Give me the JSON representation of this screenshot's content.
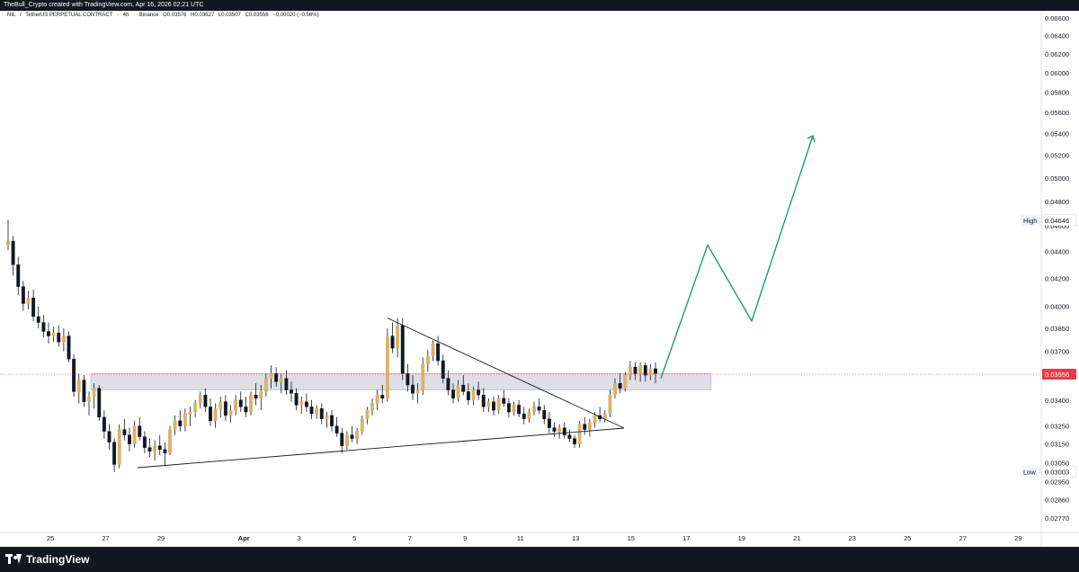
{
  "header": {
    "attribution": "TheBull_Crypto created with TradingView.com, Apr 16, 2026 02:21 UTC"
  },
  "symbol_bar": {
    "symbol": "NIL",
    "separator": "/",
    "pair": "TetherUS PERPETUAL CONTRACT",
    "interval": "4h",
    "exchange": "Binance",
    "open": "O0.03576",
    "high": "H0.03627",
    "low": "L0.03507",
    "close": "C0.03556",
    "change": "−0.00020 (−0.56%)"
  },
  "footer": {
    "brand": "TradingView"
  },
  "colors": {
    "candle_up": "#d7b46a",
    "candle_down": "#131722",
    "projection": "#1e9c74",
    "zone": "#d1d4dc",
    "price_tag": "#f23645",
    "trendline": "#131722"
  },
  "chart_data": {
    "type": "candlestick",
    "title": "NIL / TetherUS PERPETUAL CONTRACT · 4h · Binance",
    "price_axis": {
      "labels": [
        "0.06600",
        "0.06400",
        "0.06200",
        "0.06000",
        "0.05800",
        "0.05600",
        "0.05400",
        "0.05200",
        "0.05000",
        "0.04800",
        "0.04600",
        "0.04400",
        "0.04200",
        "0.04000",
        "0.03850",
        "0.03700",
        "0.03550",
        "0.03400",
        "0.03250",
        "0.03150",
        "0.03050",
        "0.02950",
        "0.02860",
        "0.02770"
      ],
      "scale": "log",
      "range": [
        0.0272,
        0.0662
      ]
    },
    "time_axis": {
      "labels": [
        "25",
        "27",
        "29",
        "Apr",
        "3",
        "5",
        "7",
        "9",
        "11",
        "13",
        "15",
        "17",
        "19",
        "21",
        "23",
        "25",
        "27",
        "29"
      ]
    },
    "markers": {
      "high_label": "High",
      "high_value": "0.04646",
      "low_label": "Low",
      "low_value": "0.03003",
      "last_value": "0.03556"
    },
    "candles": [
      {
        "date": "Mar 24",
        "o": 0.0445,
        "h": 0.0465,
        "l": 0.0441,
        "c": 0.0448
      },
      {
        "date": "Mar 24",
        "o": 0.0448,
        "h": 0.0452,
        "l": 0.0422,
        "c": 0.043
      },
      {
        "date": "Mar 24",
        "o": 0.043,
        "h": 0.0436,
        "l": 0.0408,
        "c": 0.0414
      },
      {
        "date": "Mar 25",
        "o": 0.0414,
        "h": 0.0418,
        "l": 0.0397,
        "c": 0.0402
      },
      {
        "date": "Mar 25",
        "o": 0.0402,
        "h": 0.0411,
        "l": 0.0398,
        "c": 0.0406
      },
      {
        "date": "Mar 25",
        "o": 0.0406,
        "h": 0.0412,
        "l": 0.039,
        "c": 0.0393
      },
      {
        "date": "Mar 25",
        "o": 0.0393,
        "h": 0.04,
        "l": 0.0385,
        "c": 0.0389
      },
      {
        "date": "Mar 25",
        "o": 0.0389,
        "h": 0.0394,
        "l": 0.0379,
        "c": 0.0383
      },
      {
        "date": "Mar 25",
        "o": 0.0383,
        "h": 0.0389,
        "l": 0.0375,
        "c": 0.038
      },
      {
        "date": "Mar 26",
        "o": 0.038,
        "h": 0.0386,
        "l": 0.0376,
        "c": 0.0382
      },
      {
        "date": "Mar 26",
        "o": 0.0382,
        "h": 0.0387,
        "l": 0.0373,
        "c": 0.0376
      },
      {
        "date": "Mar 26",
        "o": 0.0376,
        "h": 0.0385,
        "l": 0.037,
        "c": 0.038
      },
      {
        "date": "Mar 26",
        "o": 0.038,
        "h": 0.0383,
        "l": 0.0363,
        "c": 0.0365
      },
      {
        "date": "Mar 26",
        "o": 0.0365,
        "h": 0.0368,
        "l": 0.0342,
        "c": 0.0345
      },
      {
        "date": "Mar 26",
        "o": 0.0345,
        "h": 0.0356,
        "l": 0.0338,
        "c": 0.0352
      },
      {
        "date": "Mar 27",
        "o": 0.0352,
        "h": 0.0355,
        "l": 0.0336,
        "c": 0.0339
      },
      {
        "date": "Mar 27",
        "o": 0.0339,
        "h": 0.0345,
        "l": 0.0331,
        "c": 0.0342
      },
      {
        "date": "Mar 27",
        "o": 0.0342,
        "h": 0.035,
        "l": 0.0335,
        "c": 0.0347
      },
      {
        "date": "Mar 27",
        "o": 0.0347,
        "h": 0.0349,
        "l": 0.0328,
        "c": 0.033
      },
      {
        "date": "Mar 27",
        "o": 0.033,
        "h": 0.0334,
        "l": 0.0318,
        "c": 0.0322
      },
      {
        "date": "Mar 27",
        "o": 0.0322,
        "h": 0.0326,
        "l": 0.0312,
        "c": 0.0316
      },
      {
        "date": "Mar 28",
        "o": 0.0316,
        "h": 0.0318,
        "l": 0.03,
        "c": 0.0304
      },
      {
        "date": "Mar 28",
        "o": 0.0304,
        "h": 0.0326,
        "l": 0.0302,
        "c": 0.0323
      },
      {
        "date": "Mar 28",
        "o": 0.0323,
        "h": 0.0329,
        "l": 0.0317,
        "c": 0.032
      },
      {
        "date": "Mar 28",
        "o": 0.032,
        "h": 0.0324,
        "l": 0.0311,
        "c": 0.0315
      },
      {
        "date": "Mar 28",
        "o": 0.0315,
        "h": 0.0328,
        "l": 0.0313,
        "c": 0.0325
      },
      {
        "date": "Mar 28",
        "o": 0.0325,
        "h": 0.033,
        "l": 0.0317,
        "c": 0.0319
      },
      {
        "date": "Mar 29",
        "o": 0.0319,
        "h": 0.0322,
        "l": 0.031,
        "c": 0.0313
      },
      {
        "date": "Mar 29",
        "o": 0.0313,
        "h": 0.0318,
        "l": 0.0308,
        "c": 0.0311
      },
      {
        "date": "Mar 29",
        "o": 0.0311,
        "h": 0.0317,
        "l": 0.0306,
        "c": 0.0314
      },
      {
        "date": "Mar 29",
        "o": 0.0314,
        "h": 0.032,
        "l": 0.0309,
        "c": 0.0312
      },
      {
        "date": "Mar 29",
        "o": 0.0312,
        "h": 0.0316,
        "l": 0.0303,
        "c": 0.031
      },
      {
        "date": "Mar 29",
        "o": 0.031,
        "h": 0.0325,
        "l": 0.0309,
        "c": 0.0323
      },
      {
        "date": "Mar 30",
        "o": 0.0323,
        "h": 0.0331,
        "l": 0.032,
        "c": 0.0328
      },
      {
        "date": "Mar 30",
        "o": 0.0328,
        "h": 0.0334,
        "l": 0.0322,
        "c": 0.0325
      },
      {
        "date": "Mar 30",
        "o": 0.0325,
        "h": 0.0335,
        "l": 0.0322,
        "c": 0.0332
      },
      {
        "date": "Mar 30",
        "o": 0.0332,
        "h": 0.0336,
        "l": 0.0325,
        "c": 0.0333
      },
      {
        "date": "Mar 30",
        "o": 0.0333,
        "h": 0.034,
        "l": 0.033,
        "c": 0.0338
      },
      {
        "date": "Mar 30",
        "o": 0.0338,
        "h": 0.0345,
        "l": 0.0335,
        "c": 0.0343
      },
      {
        "date": "Mar 31",
        "o": 0.0343,
        "h": 0.0347,
        "l": 0.0333,
        "c": 0.0336
      },
      {
        "date": "Mar 31",
        "o": 0.0336,
        "h": 0.0341,
        "l": 0.0325,
        "c": 0.0328
      },
      {
        "date": "Mar 31",
        "o": 0.0328,
        "h": 0.0338,
        "l": 0.0324,
        "c": 0.0335
      },
      {
        "date": "Mar 31",
        "o": 0.0335,
        "h": 0.0342,
        "l": 0.033,
        "c": 0.0339
      },
      {
        "date": "Mar 31",
        "o": 0.0339,
        "h": 0.0343,
        "l": 0.0328,
        "c": 0.0331
      },
      {
        "date": "Mar 31",
        "o": 0.0331,
        "h": 0.0337,
        "l": 0.0327,
        "c": 0.0334
      },
      {
        "date": "Apr 1",
        "o": 0.0334,
        "h": 0.0343,
        "l": 0.0331,
        "c": 0.034
      },
      {
        "date": "Apr 1",
        "o": 0.034,
        "h": 0.0345,
        "l": 0.0333,
        "c": 0.0336
      },
      {
        "date": "Apr 1",
        "o": 0.0336,
        "h": 0.0342,
        "l": 0.033,
        "c": 0.0333
      },
      {
        "date": "Apr 1",
        "o": 0.0333,
        "h": 0.0345,
        "l": 0.0331,
        "c": 0.0343
      },
      {
        "date": "Apr 1",
        "o": 0.0343,
        "h": 0.035,
        "l": 0.0337,
        "c": 0.0341
      },
      {
        "date": "Apr 1",
        "o": 0.0341,
        "h": 0.0349,
        "l": 0.0334,
        "c": 0.0345
      },
      {
        "date": "Apr 2",
        "o": 0.0345,
        "h": 0.0356,
        "l": 0.0342,
        "c": 0.0353
      },
      {
        "date": "Apr 2",
        "o": 0.0353,
        "h": 0.0361,
        "l": 0.0347,
        "c": 0.0356
      },
      {
        "date": "Apr 2",
        "o": 0.0356,
        "h": 0.036,
        "l": 0.0348,
        "c": 0.0351
      },
      {
        "date": "Apr 2",
        "o": 0.0351,
        "h": 0.0356,
        "l": 0.0344,
        "c": 0.0353
      },
      {
        "date": "Apr 2",
        "o": 0.0353,
        "h": 0.0358,
        "l": 0.0343,
        "c": 0.0346
      },
      {
        "date": "Apr 2",
        "o": 0.0346,
        "h": 0.0351,
        "l": 0.0339,
        "c": 0.0344
      },
      {
        "date": "Apr 3",
        "o": 0.0344,
        "h": 0.0347,
        "l": 0.0334,
        "c": 0.0337
      },
      {
        "date": "Apr 3",
        "o": 0.0337,
        "h": 0.0342,
        "l": 0.0332,
        "c": 0.0339
      },
      {
        "date": "Apr 3",
        "o": 0.0339,
        "h": 0.0344,
        "l": 0.0333,
        "c": 0.0336
      },
      {
        "date": "Apr 3",
        "o": 0.0336,
        "h": 0.034,
        "l": 0.0329,
        "c": 0.0332
      },
      {
        "date": "Apr 3",
        "o": 0.0332,
        "h": 0.0337,
        "l": 0.0329,
        "c": 0.0335
      },
      {
        "date": "Apr 3",
        "o": 0.0335,
        "h": 0.0338,
        "l": 0.0326,
        "c": 0.0329
      },
      {
        "date": "Apr 4",
        "o": 0.0329,
        "h": 0.0333,
        "l": 0.0324,
        "c": 0.0331
      },
      {
        "date": "Apr 4",
        "o": 0.0331,
        "h": 0.0334,
        "l": 0.0322,
        "c": 0.0325
      },
      {
        "date": "Apr 4",
        "o": 0.0325,
        "h": 0.033,
        "l": 0.0319,
        "c": 0.0321
      },
      {
        "date": "Apr 4",
        "o": 0.0321,
        "h": 0.0324,
        "l": 0.031,
        "c": 0.0314
      },
      {
        "date": "Apr 4",
        "o": 0.0314,
        "h": 0.0322,
        "l": 0.0312,
        "c": 0.032
      },
      {
        "date": "Apr 4",
        "o": 0.032,
        "h": 0.0325,
        "l": 0.0316,
        "c": 0.0318
      },
      {
        "date": "Apr 5",
        "o": 0.0318,
        "h": 0.0324,
        "l": 0.0315,
        "c": 0.0322
      },
      {
        "date": "Apr 5",
        "o": 0.0322,
        "h": 0.0331,
        "l": 0.032,
        "c": 0.0329
      },
      {
        "date": "Apr 5",
        "o": 0.0329,
        "h": 0.0336,
        "l": 0.0326,
        "c": 0.0334
      },
      {
        "date": "Apr 5",
        "o": 0.0334,
        "h": 0.0341,
        "l": 0.0331,
        "c": 0.0338
      },
      {
        "date": "Apr 5",
        "o": 0.0338,
        "h": 0.0346,
        "l": 0.0334,
        "c": 0.0343
      },
      {
        "date": "Apr 5",
        "o": 0.0343,
        "h": 0.0349,
        "l": 0.0338,
        "c": 0.0341
      },
      {
        "date": "Apr 6",
        "o": 0.0341,
        "h": 0.0385,
        "l": 0.0339,
        "c": 0.038
      },
      {
        "date": "Apr 6",
        "o": 0.038,
        "h": 0.0389,
        "l": 0.0369,
        "c": 0.0372
      },
      {
        "date": "Apr 6",
        "o": 0.0372,
        "h": 0.0392,
        "l": 0.0366,
        "c": 0.0387
      },
      {
        "date": "Apr 6",
        "o": 0.0387,
        "h": 0.0392,
        "l": 0.0352,
        "c": 0.0356
      },
      {
        "date": "Apr 6",
        "o": 0.0356,
        "h": 0.0362,
        "l": 0.0345,
        "c": 0.0349
      },
      {
        "date": "Apr 6",
        "o": 0.0349,
        "h": 0.0355,
        "l": 0.034,
        "c": 0.0344
      },
      {
        "date": "Apr 7",
        "o": 0.0344,
        "h": 0.035,
        "l": 0.0338,
        "c": 0.0346
      },
      {
        "date": "Apr 7",
        "o": 0.0346,
        "h": 0.0366,
        "l": 0.0343,
        "c": 0.0362
      },
      {
        "date": "Apr 7",
        "o": 0.0362,
        "h": 0.0371,
        "l": 0.0357,
        "c": 0.0367
      },
      {
        "date": "Apr 7",
        "o": 0.0367,
        "h": 0.0377,
        "l": 0.0364,
        "c": 0.0375
      },
      {
        "date": "Apr 7",
        "o": 0.0375,
        "h": 0.038,
        "l": 0.0361,
        "c": 0.0364
      },
      {
        "date": "Apr 7",
        "o": 0.0364,
        "h": 0.0368,
        "l": 0.035,
        "c": 0.0353
      },
      {
        "date": "Apr 8",
        "o": 0.0353,
        "h": 0.0358,
        "l": 0.0343,
        "c": 0.0346
      },
      {
        "date": "Apr 8",
        "o": 0.0346,
        "h": 0.035,
        "l": 0.0338,
        "c": 0.0341
      },
      {
        "date": "Apr 8",
        "o": 0.0341,
        "h": 0.0352,
        "l": 0.0339,
        "c": 0.0349
      },
      {
        "date": "Apr 8",
        "o": 0.0349,
        "h": 0.0355,
        "l": 0.0343,
        "c": 0.0345
      },
      {
        "date": "Apr 8",
        "o": 0.0345,
        "h": 0.035,
        "l": 0.0337,
        "c": 0.034
      },
      {
        "date": "Apr 8",
        "o": 0.034,
        "h": 0.0348,
        "l": 0.0337,
        "c": 0.0346
      },
      {
        "date": "Apr 9",
        "o": 0.0346,
        "h": 0.0351,
        "l": 0.034,
        "c": 0.0343
      },
      {
        "date": "Apr 9",
        "o": 0.0343,
        "h": 0.0347,
        "l": 0.0333,
        "c": 0.0336
      },
      {
        "date": "Apr 9",
        "o": 0.0336,
        "h": 0.0341,
        "l": 0.0333,
        "c": 0.0339
      },
      {
        "date": "Apr 9",
        "o": 0.0339,
        "h": 0.0342,
        "l": 0.0331,
        "c": 0.0334
      },
      {
        "date": "Apr 9",
        "o": 0.0334,
        "h": 0.0343,
        "l": 0.0332,
        "c": 0.0341
      },
      {
        "date": "Apr 9",
        "o": 0.0341,
        "h": 0.0346,
        "l": 0.0336,
        "c": 0.0338
      },
      {
        "date": "Apr 10",
        "o": 0.0338,
        "h": 0.0341,
        "l": 0.033,
        "c": 0.0333
      },
      {
        "date": "Apr 10",
        "o": 0.0333,
        "h": 0.0339,
        "l": 0.0331,
        "c": 0.0337
      },
      {
        "date": "Apr 10",
        "o": 0.0337,
        "h": 0.034,
        "l": 0.033,
        "c": 0.0332
      },
      {
        "date": "Apr 10",
        "o": 0.0332,
        "h": 0.0336,
        "l": 0.0326,
        "c": 0.0329
      },
      {
        "date": "Apr 10",
        "o": 0.0329,
        "h": 0.0335,
        "l": 0.0327,
        "c": 0.0333
      },
      {
        "date": "Apr 10",
        "o": 0.0333,
        "h": 0.0339,
        "l": 0.0331,
        "c": 0.0336
      },
      {
        "date": "Apr 11",
        "o": 0.0336,
        "h": 0.0341,
        "l": 0.0332,
        "c": 0.0334
      },
      {
        "date": "Apr 11",
        "o": 0.0334,
        "h": 0.0337,
        "l": 0.0326,
        "c": 0.0329
      },
      {
        "date": "Apr 11",
        "o": 0.0329,
        "h": 0.0333,
        "l": 0.0321,
        "c": 0.0324
      },
      {
        "date": "Apr 11",
        "o": 0.0324,
        "h": 0.0327,
        "l": 0.0319,
        "c": 0.0322
      },
      {
        "date": "Apr 11",
        "o": 0.0322,
        "h": 0.0326,
        "l": 0.0318,
        "c": 0.0324
      },
      {
        "date": "Apr 11",
        "o": 0.0324,
        "h": 0.0327,
        "l": 0.0318,
        "c": 0.032
      },
      {
        "date": "Apr 12",
        "o": 0.032,
        "h": 0.0323,
        "l": 0.0316,
        "c": 0.0318
      },
      {
        "date": "Apr 12",
        "o": 0.0318,
        "h": 0.032,
        "l": 0.0313,
        "c": 0.0315
      },
      {
        "date": "Apr 12",
        "o": 0.0315,
        "h": 0.0328,
        "l": 0.0313,
        "c": 0.0326
      },
      {
        "date": "Apr 12",
        "o": 0.0326,
        "h": 0.033,
        "l": 0.032,
        "c": 0.0323
      },
      {
        "date": "Apr 12",
        "o": 0.0323,
        "h": 0.0329,
        "l": 0.0319,
        "c": 0.0327
      },
      {
        "date": "Apr 12",
        "o": 0.0327,
        "h": 0.0333,
        "l": 0.0324,
        "c": 0.0331
      },
      {
        "date": "Apr 13",
        "o": 0.0331,
        "h": 0.0336,
        "l": 0.0327,
        "c": 0.0329
      },
      {
        "date": "Apr 13",
        "o": 0.0329,
        "h": 0.0334,
        "l": 0.0327,
        "c": 0.0332
      },
      {
        "date": "Apr 13",
        "o": 0.0332,
        "h": 0.0346,
        "l": 0.033,
        "c": 0.0343
      },
      {
        "date": "Apr 13",
        "o": 0.0343,
        "h": 0.0353,
        "l": 0.0341,
        "c": 0.035
      },
      {
        "date": "Apr 13",
        "o": 0.035,
        "h": 0.0356,
        "l": 0.0344,
        "c": 0.0347
      },
      {
        "date": "Apr 14",
        "o": 0.0347,
        "h": 0.0357,
        "l": 0.0345,
        "c": 0.0355
      },
      {
        "date": "Apr 14",
        "o": 0.0355,
        "h": 0.0364,
        "l": 0.0352,
        "c": 0.036
      },
      {
        "date": "Apr 14",
        "o": 0.036,
        "h": 0.0363,
        "l": 0.0352,
        "c": 0.0356
      },
      {
        "date": "Apr 14",
        "o": 0.0356,
        "h": 0.0363,
        "l": 0.0351,
        "c": 0.0361
      },
      {
        "date": "Apr 14",
        "o": 0.0361,
        "h": 0.0363,
        "l": 0.0351,
        "c": 0.0355
      },
      {
        "date": "Apr 15",
        "o": 0.0355,
        "h": 0.0362,
        "l": 0.0352,
        "c": 0.0359
      },
      {
        "date": "Apr 15",
        "o": 0.0359,
        "h": 0.0363,
        "l": 0.035,
        "c": 0.0356
      }
    ],
    "annotations": {
      "support_zone": {
        "low": 0.0346,
        "high": 0.0356
      },
      "descending_trendline": [
        {
          "date": "Apr 6",
          "price": 0.0392
        },
        {
          "date": "Apr 14",
          "price": 0.0327
        }
      ],
      "ascending_trendline": [
        {
          "date": "Mar 28",
          "price": 0.0302
        },
        {
          "date": "Apr 14",
          "price": 0.0327
        }
      ],
      "projection_path": [
        {
          "date": "Apr 15",
          "price": 0.0353
        },
        {
          "date": "Apr 18",
          "price": 0.0445
        },
        {
          "date": "Apr 19",
          "price": 0.039
        },
        {
          "date": "Apr 22",
          "price": 0.0538
        }
      ]
    },
    "grid": false,
    "legend": "none"
  }
}
